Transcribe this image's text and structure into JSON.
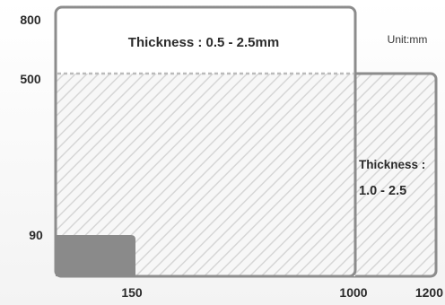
{
  "unit": "Unit:mm",
  "regions": [
    {
      "id": "main",
      "width": 1000,
      "height": 800,
      "thickness_label": "Thickness : 0.5 - 2.5mm"
    },
    {
      "id": "extension",
      "width": 1200,
      "height": 500,
      "thickness_label_line1": "Thickness :",
      "thickness_label_line2": "1.0 - 2.5"
    },
    {
      "id": "minimum",
      "width": 150,
      "height": 90
    }
  ],
  "axis_labels": {
    "y": [
      "800",
      "500",
      "90"
    ],
    "x": [
      "150",
      "1000",
      "1200"
    ]
  },
  "colors": {
    "outline": "#8c8c8c",
    "hatch": "#d6d6d6",
    "small_fill": "#8a8a8a",
    "dashed": "#bbbbbb",
    "text": "#2b2b2b"
  }
}
